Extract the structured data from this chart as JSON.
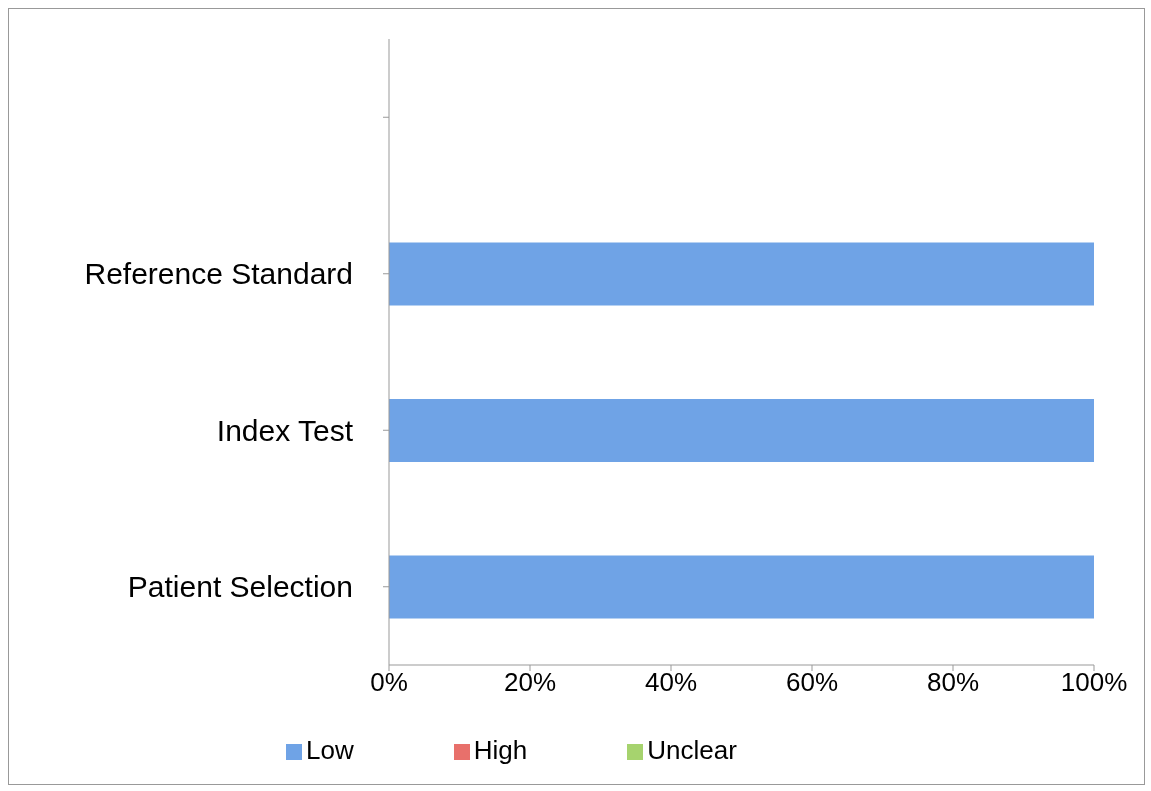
{
  "chart_data": {
    "type": "bar",
    "orientation": "horizontal",
    "stacked": true,
    "categories": [
      null,
      "Reference Standard",
      "Index Test",
      "Patient Selection"
    ],
    "series": [
      {
        "name": "Low",
        "color": "#6fa3e6",
        "values": [
          null,
          100,
          100,
          100
        ]
      },
      {
        "name": "High",
        "color": "#e8706b",
        "values": [
          null,
          0,
          0,
          0
        ]
      },
      {
        "name": "Unclear",
        "color": "#a6d36e",
        "values": [
          null,
          0,
          0,
          0
        ]
      }
    ],
    "xlim": [
      0,
      100
    ],
    "xticks": [
      {
        "value": 0,
        "label": "0%"
      },
      {
        "value": 20,
        "label": "20%"
      },
      {
        "value": 40,
        "label": "40%"
      },
      {
        "value": 60,
        "label": "60%"
      },
      {
        "value": 80,
        "label": "80%"
      },
      {
        "value": 100,
        "label": "100%"
      }
    ],
    "grid": false,
    "legend": "bottom"
  }
}
